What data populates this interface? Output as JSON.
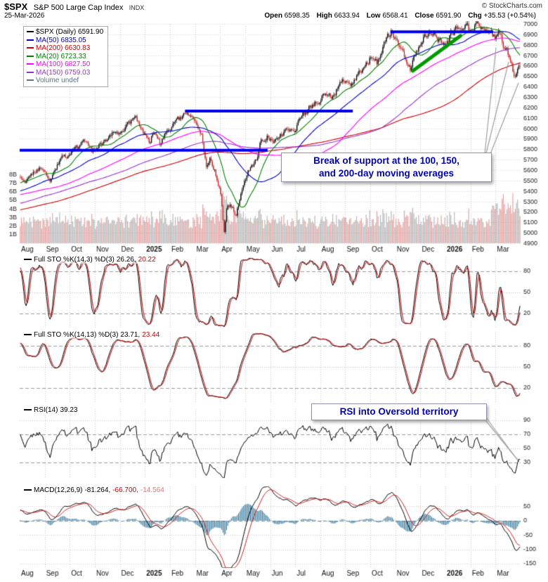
{
  "header": {
    "symbol": "$SPX",
    "index_name": "S&P 500 Large Cap Index",
    "exchange": "INDX",
    "copyright": "© StockCharts.com",
    "date": "25-Mar-2026",
    "quote": {
      "open_label": "Open",
      "open": "6598.35",
      "high_label": "High",
      "high": "6633.94",
      "low_label": "Low",
      "low": "6568.41",
      "close_label": "Close",
      "close": "6591.90",
      "chg_label": "Chg",
      "chg": "+35.53 (+0.54%)"
    }
  },
  "legend": {
    "items": [
      {
        "label": "$SPX (Daily) 6591.90",
        "color": "#000000"
      },
      {
        "label": "MA(50) 6835.05",
        "color": "#0000cc"
      },
      {
        "label": "MA(200) 6630.83",
        "color": "#cc0000"
      },
      {
        "label": "MA(20) 6723.33",
        "color": "#008000"
      },
      {
        "label": "MA(100) 6827.50",
        "color": "#ff00ff"
      },
      {
        "label": "MA(150) 6759.03",
        "color": "#9933cc"
      },
      {
        "label": "Volume undef",
        "color": "#5f7387"
      }
    ]
  },
  "annotations": {
    "support_break_line1": "Break of support at the 100, 150,",
    "support_break_line2": "and 200-day moving averages",
    "rsi_oversold": "RSI into Oversold territory"
  },
  "chart_data": {
    "type": "candlestick",
    "symbol": "$SPX",
    "timeframe": "Daily",
    "x_axis": {
      "months": [
        "Aug",
        "Sep",
        "Oct",
        "Nov",
        "Dec",
        "2025",
        "Feb",
        "Mar",
        "Apr",
        "May",
        "Jun",
        "Jul",
        "Aug",
        "Sep",
        "Oct",
        "Nov",
        "Dec",
        "2026",
        "Feb",
        "Mar"
      ]
    },
    "price_axis": {
      "min": 4900,
      "max": 7000,
      "tick_step": 100
    },
    "volume_axis": {
      "ticks": [
        "1B",
        "2B",
        "3B",
        "4B",
        "5B",
        "6B",
        "7B",
        "8B"
      ],
      "max_billions": 8.5
    },
    "days": 420,
    "last": {
      "open": 6598.35,
      "high": 6633.94,
      "low": 6568.41,
      "close": 6591.9
    },
    "price_anchors": [
      [
        0.0,
        5510
      ],
      [
        0.01,
        5430
      ],
      [
        0.022,
        5560
      ],
      [
        0.04,
        5640
      ],
      [
        0.052,
        5585
      ],
      [
        0.06,
        5470
      ],
      [
        0.072,
        5625
      ],
      [
        0.085,
        5705
      ],
      [
        0.1,
        5755
      ],
      [
        0.115,
        5815
      ],
      [
        0.13,
        5860
      ],
      [
        0.145,
        5770
      ],
      [
        0.16,
        5855
      ],
      [
        0.175,
        5915
      ],
      [
        0.19,
        6000
      ],
      [
        0.205,
        5945
      ],
      [
        0.22,
        6060
      ],
      [
        0.232,
        6090
      ],
      [
        0.245,
        5975
      ],
      [
        0.258,
        5885
      ],
      [
        0.268,
        5965
      ],
      [
        0.28,
        5835
      ],
      [
        0.292,
        5975
      ],
      [
        0.305,
        6045
      ],
      [
        0.318,
        6090
      ],
      [
        0.33,
        6125
      ],
      [
        0.34,
        6145
      ],
      [
        0.352,
        6035
      ],
      [
        0.362,
        5955
      ],
      [
        0.372,
        5640
      ],
      [
        0.38,
        5705
      ],
      [
        0.39,
        5585
      ],
      [
        0.4,
        5420
      ],
      [
        0.408,
        4975
      ],
      [
        0.414,
        5285
      ],
      [
        0.422,
        5260
      ],
      [
        0.432,
        5165
      ],
      [
        0.442,
        5370
      ],
      [
        0.452,
        5520
      ],
      [
        0.462,
        5655
      ],
      [
        0.472,
        5685
      ],
      [
        0.482,
        5885
      ],
      [
        0.495,
        5920
      ],
      [
        0.508,
        5875
      ],
      [
        0.52,
        5940
      ],
      [
        0.535,
        5995
      ],
      [
        0.548,
        5975
      ],
      [
        0.562,
        6090
      ],
      [
        0.578,
        6205
      ],
      [
        0.595,
        6255
      ],
      [
        0.612,
        6340
      ],
      [
        0.625,
        6305
      ],
      [
        0.638,
        6405
      ],
      [
        0.652,
        6460
      ],
      [
        0.662,
        6415
      ],
      [
        0.675,
        6505
      ],
      [
        0.69,
        6605
      ],
      [
        0.702,
        6690
      ],
      [
        0.714,
        6615
      ],
      [
        0.728,
        6795
      ],
      [
        0.742,
        6915
      ],
      [
        0.755,
        6845
      ],
      [
        0.768,
        6705
      ],
      [
        0.78,
        6565
      ],
      [
        0.793,
        6725
      ],
      [
        0.808,
        6875
      ],
      [
        0.822,
        6930
      ],
      [
        0.838,
        6845
      ],
      [
        0.85,
        6775
      ],
      [
        0.862,
        6905
      ],
      [
        0.875,
        6960
      ],
      [
        0.888,
        6995
      ],
      [
        0.9,
        6930
      ],
      [
        0.91,
        6975
      ],
      [
        0.92,
        7000
      ],
      [
        0.93,
        6905
      ],
      [
        0.94,
        6940
      ],
      [
        0.95,
        6865
      ],
      [
        0.958,
        6905
      ],
      [
        0.966,
        6805
      ],
      [
        0.974,
        6745
      ],
      [
        0.982,
        6625
      ],
      [
        0.99,
        6485
      ],
      [
        0.995,
        6545
      ],
      [
        1.0,
        6592
      ]
    ],
    "moving_averages": [
      {
        "period": 200,
        "value": 6630.83,
        "color": "#cc0000"
      },
      {
        "period": 150,
        "value": 6759.03,
        "color": "#9933cc"
      },
      {
        "period": 100,
        "value": 6827.5,
        "color": "#ff00ff"
      },
      {
        "period": 50,
        "value": 6835.05,
        "color": "#0000cc"
      },
      {
        "period": 20,
        "value": 6723.33,
        "color": "#008000"
      }
    ],
    "support_lines": [
      {
        "price": 5790,
        "x1": 0.0,
        "x2": 0.495
      },
      {
        "price": 6165,
        "x1": 0.33,
        "x2": 0.665
      },
      {
        "price": 6925,
        "x1": 0.74,
        "x2": 0.945
      }
    ],
    "trendline": {
      "x1": 0.785,
      "price1": 6550,
      "x2": 0.88,
      "price2": 6886,
      "color": "#009900"
    },
    "candle_colors": {
      "up": "#000000",
      "down": "#bb2222"
    },
    "volume_colors": {
      "up": "rgba(130,130,130,0.55)",
      "down": "rgba(205,90,90,0.55)"
    },
    "indicators": {
      "sto_fast": {
        "name": "Full STO %K(14,3) %D(3)",
        "k": 26.26,
        "d": 20.22,
        "k_text": "26.26,",
        "d_text": "20.22",
        "ticks": [
          20,
          50,
          80
        ]
      },
      "sto_slow": {
        "name": "Full STO %K(14,13) %D(3)",
        "k": 23.71,
        "d": 23.44,
        "k_text": "23.71,",
        "d_text": "23.44",
        "ticks": [
          20,
          50,
          80
        ]
      },
      "rsi": {
        "name": "RSI(14)",
        "value": 39.23,
        "value_text": "39.23",
        "ticks": [
          30,
          50,
          70,
          90
        ]
      },
      "macd": {
        "name": "MACD(12,26,9)",
        "macd": -81.264,
        "signal": -66.7,
        "hist": -14.564,
        "v1_text": "-81.264,",
        "v2_text": "-66.700,",
        "v3_text": "-14.564",
        "ticks": [
          50,
          0,
          -50,
          -100,
          -150
        ]
      }
    }
  }
}
